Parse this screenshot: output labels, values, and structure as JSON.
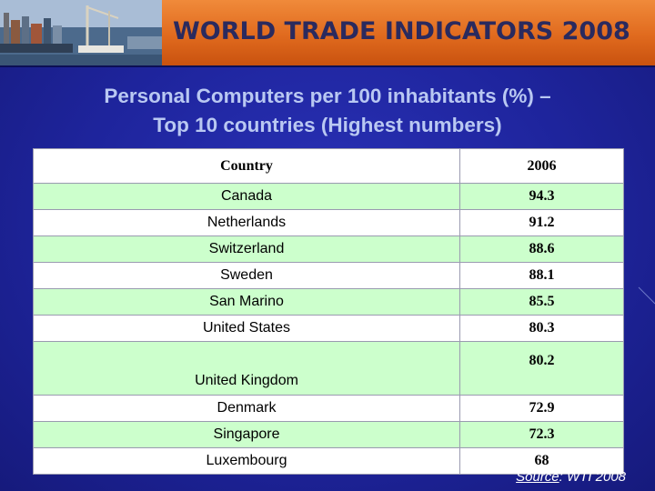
{
  "banner": {
    "title": "WORLD TRADE INDICATORS 2008"
  },
  "slide": {
    "title_line1": "Personal Computers per 100 inhabitants (%) –",
    "title_line2": "Top 10 countries (Highest numbers)"
  },
  "table": {
    "headers": [
      "Country",
      "2006"
    ],
    "rows": [
      {
        "country": "Canada",
        "value": "94.3"
      },
      {
        "country": "Netherlands",
        "value": "91.2"
      },
      {
        "country": "Switzerland",
        "value": "88.6"
      },
      {
        "country": "Sweden",
        "value": "88.1"
      },
      {
        "country": "San Marino",
        "value": "85.5"
      },
      {
        "country": "United States",
        "value": "80.3"
      },
      {
        "country": "United Kingdom",
        "value": "80.2"
      },
      {
        "country": "Denmark",
        "value": "72.9"
      },
      {
        "country": "Singapore",
        "value": "72.3"
      },
      {
        "country": "Luxembourg",
        "value": "68"
      }
    ]
  },
  "source": {
    "label": "Source",
    "text": ": WTI 2008"
  },
  "colors": {
    "banner": "#e06a1e",
    "background": "#1e249c",
    "title": "#b9c8f2",
    "row_fill": "#ccffcc"
  },
  "icons": [
    "port-photo-image"
  ]
}
